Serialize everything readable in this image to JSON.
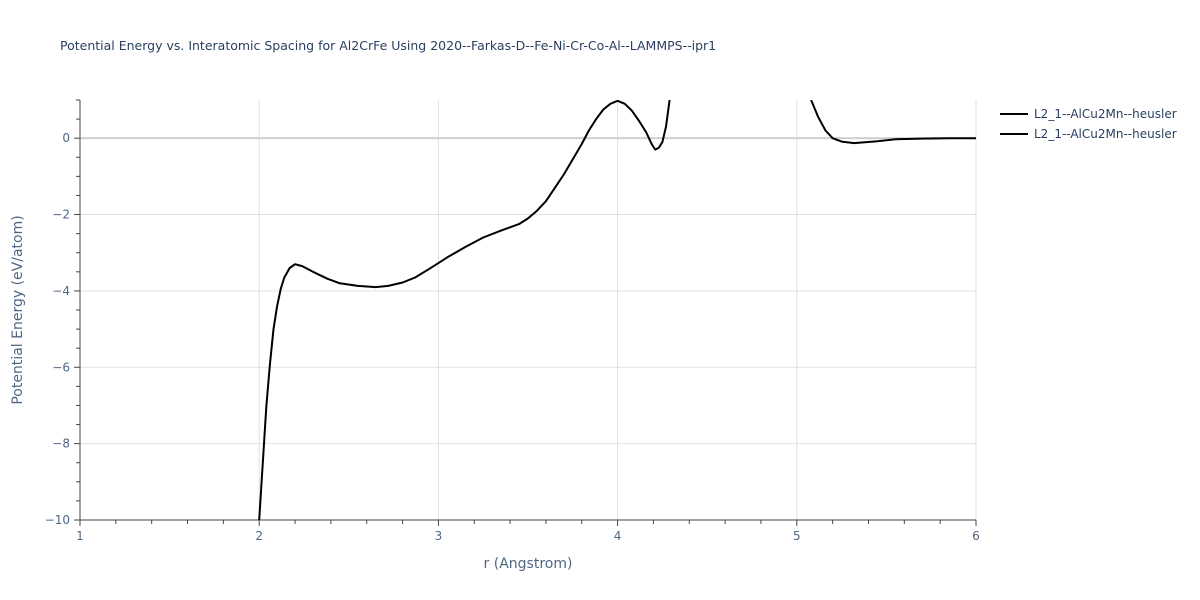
{
  "chart_data": {
    "type": "line",
    "title": "Potential Energy vs. Interatomic Spacing for Al2CrFe Using 2020--Farkas-D--Fe-Ni-Cr-Co-Al--LAMMPS--ipr1",
    "xlabel": "r (Angstrom)",
    "ylabel": "Potential Energy (eV/atom)",
    "xlim": [
      1,
      6
    ],
    "ylim": [
      -10,
      1
    ],
    "x_ticks": [
      "1",
      "2",
      "3",
      "4",
      "5",
      "6"
    ],
    "y_ticks": [
      "0",
      "−2",
      "−4",
      "−6",
      "−8",
      "−10"
    ],
    "x_tick_values": [
      1,
      2,
      3,
      4,
      5,
      6
    ],
    "y_tick_values": [
      0,
      -2,
      -4,
      -6,
      -8,
      -10
    ],
    "grid": true,
    "legend_position": "top-right",
    "series": [
      {
        "name": "L2_1--AlCu2Mn--heusler",
        "color": "#000000",
        "segments": [
          [
            [
              2.0,
              -10.0
            ],
            [
              2.02,
              -8.5
            ],
            [
              2.04,
              -7.0
            ],
            [
              2.06,
              -5.9
            ],
            [
              2.08,
              -5.0
            ],
            [
              2.1,
              -4.4
            ],
            [
              2.12,
              -3.95
            ],
            [
              2.14,
              -3.65
            ],
            [
              2.17,
              -3.4
            ],
            [
              2.2,
              -3.3
            ],
            [
              2.24,
              -3.35
            ],
            [
              2.3,
              -3.5
            ],
            [
              2.38,
              -3.68
            ],
            [
              2.45,
              -3.8
            ],
            [
              2.55,
              -3.87
            ],
            [
              2.65,
              -3.9
            ],
            [
              2.72,
              -3.87
            ],
            [
              2.8,
              -3.78
            ],
            [
              2.87,
              -3.65
            ],
            [
              2.95,
              -3.42
            ],
            [
              3.05,
              -3.12
            ],
            [
              3.15,
              -2.85
            ],
            [
              3.25,
              -2.6
            ],
            [
              3.35,
              -2.42
            ],
            [
              3.45,
              -2.25
            ],
            [
              3.5,
              -2.1
            ],
            [
              3.55,
              -1.9
            ],
            [
              3.6,
              -1.65
            ],
            [
              3.65,
              -1.3
            ],
            [
              3.7,
              -0.95
            ],
            [
              3.75,
              -0.55
            ],
            [
              3.8,
              -0.15
            ],
            [
              3.84,
              0.2
            ],
            [
              3.88,
              0.5
            ],
            [
              3.92,
              0.75
            ],
            [
              3.96,
              0.9
            ],
            [
              4.0,
              0.98
            ],
            [
              4.04,
              0.9
            ],
            [
              4.08,
              0.72
            ],
            [
              4.12,
              0.45
            ],
            [
              4.16,
              0.15
            ],
            [
              4.19,
              -0.15
            ],
            [
              4.21,
              -0.3
            ],
            [
              4.23,
              -0.25
            ],
            [
              4.25,
              -0.1
            ],
            [
              4.27,
              0.3
            ],
            [
              4.29,
              1.0
            ]
          ],
          [
            [
              5.08,
              1.0
            ],
            [
              5.12,
              0.55
            ],
            [
              5.16,
              0.2
            ],
            [
              5.2,
              0.0
            ],
            [
              5.25,
              -0.09
            ],
            [
              5.32,
              -0.13
            ],
            [
              5.45,
              -0.08
            ],
            [
              5.55,
              -0.03
            ],
            [
              5.7,
              -0.01
            ],
            [
              5.85,
              0.0
            ],
            [
              6.0,
              0.0
            ]
          ]
        ]
      },
      {
        "name": "L2_1--AlCu2Mn--heusler",
        "color": "#000000",
        "segments": []
      }
    ]
  }
}
